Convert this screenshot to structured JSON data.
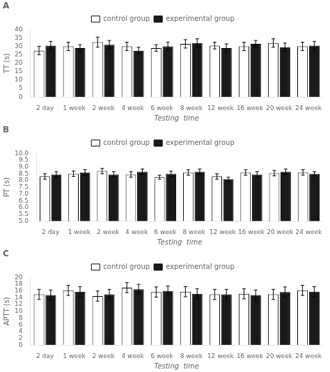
{
  "chart_data": [
    {
      "type": "bar",
      "title": "A",
      "categories": [
        "2 day",
        "1 week",
        "2 week",
        "4 week",
        "6 week",
        "8 week",
        "12 week",
        "16 week",
        "20 week",
        "24 week"
      ],
      "series": [
        {
          "name": "control group",
          "color": "#ffffff",
          "values": [
            27.5,
            30.0,
            32.5,
            30.0,
            29.0,
            31.5,
            30.5,
            30.0,
            32.0,
            30.0
          ],
          "errors": [
            2.5,
            2.5,
            3.0,
            2.5,
            2.0,
            2.5,
            2.0,
            2.5,
            2.5,
            2.5
          ]
        },
        {
          "name": "experimental group",
          "color": "#1a1a1a",
          "values": [
            30.5,
            29.0,
            31.0,
            27.5,
            30.0,
            32.0,
            29.0,
            31.5,
            29.5,
            30.5
          ],
          "errors": [
            2.5,
            2.0,
            2.5,
            2.0,
            2.5,
            2.5,
            2.5,
            2.0,
            2.5,
            2.5
          ]
        }
      ],
      "xlabel": "Testing  time",
      "ylabel": "TT (s)",
      "ylim": [
        0,
        40
      ],
      "yticks": [
        0,
        5,
        10,
        15,
        20,
        25,
        30,
        35,
        40
      ],
      "grid": false,
      "legend": "top"
    },
    {
      "type": "bar",
      "title": "B",
      "categories": [
        "2 day",
        "1 week",
        "2 week",
        "4 week",
        "6 week",
        "8 week",
        "12 week",
        "16 week",
        "20 week",
        "24 week"
      ],
      "series": [
        {
          "name": "control group",
          "color": "#ffffff",
          "values": [
            8.3,
            8.5,
            8.7,
            8.45,
            8.25,
            8.6,
            8.3,
            8.6,
            8.55,
            8.6
          ],
          "errors": [
            0.2,
            0.2,
            0.2,
            0.2,
            0.15,
            0.2,
            0.2,
            0.2,
            0.2,
            0.2
          ]
        },
        {
          "name": "experimental group",
          "color": "#1a1a1a",
          "values": [
            8.45,
            8.6,
            8.45,
            8.65,
            8.5,
            8.65,
            8.1,
            8.45,
            8.65,
            8.5
          ],
          "errors": [
            0.2,
            0.2,
            0.2,
            0.2,
            0.2,
            0.2,
            0.15,
            0.2,
            0.2,
            0.15
          ]
        }
      ],
      "xlabel": "Testing  time",
      "ylabel": "PT (s)",
      "ylim": [
        5,
        10
      ],
      "yticks": [
        {
          "value": 5,
          "label": "5.0"
        },
        {
          "value": 5.5,
          "label": "5.5"
        },
        {
          "value": 6,
          "label": "6.0"
        },
        {
          "value": 6.5,
          "label": "6.5"
        },
        {
          "value": 7,
          "label": "7.0"
        },
        {
          "value": 7.5,
          "label": "7.5"
        },
        {
          "value": 8,
          "label": "8.0"
        },
        {
          "value": 8.5,
          "label": "8.5"
        },
        {
          "value": 9,
          "label": "9.0"
        },
        {
          "value": 9.5,
          "label": "9.5"
        },
        {
          "value": 10,
          "label": "10.0"
        }
      ],
      "grid": false,
      "legend": "top"
    },
    {
      "type": "bar",
      "title": "C",
      "categories": [
        "2 day",
        "1 week",
        "2 week",
        "4 week",
        "6 week",
        "8 week",
        "12 week",
        "16 week",
        "20 week",
        "24 week"
      ],
      "series": [
        {
          "name": "control group",
          "color": "#ffffff",
          "values": [
            15.0,
            16.2,
            14.5,
            17.0,
            15.7,
            15.8,
            15.0,
            15.2,
            15.0,
            16.2
          ],
          "errors": [
            1.5,
            1.5,
            1.5,
            1.5,
            1.5,
            1.5,
            1.5,
            1.5,
            1.5,
            1.5
          ]
        },
        {
          "name": "experimental group",
          "color": "#1a1a1a",
          "values": [
            14.8,
            15.8,
            15.0,
            16.5,
            16.0,
            15.2,
            15.0,
            14.8,
            15.7,
            15.8
          ],
          "errors": [
            1.5,
            1.5,
            1.5,
            1.5,
            1.5,
            1.5,
            1.5,
            1.5,
            1.5,
            1.5
          ]
        }
      ],
      "xlabel": "Testing  time",
      "ylabel": "APTT (s)",
      "ylim": [
        0,
        20
      ],
      "yticks": [
        0,
        2,
        4,
        6,
        8,
        10,
        12,
        14,
        16,
        18,
        20
      ],
      "grid": false,
      "legend": "top"
    }
  ]
}
